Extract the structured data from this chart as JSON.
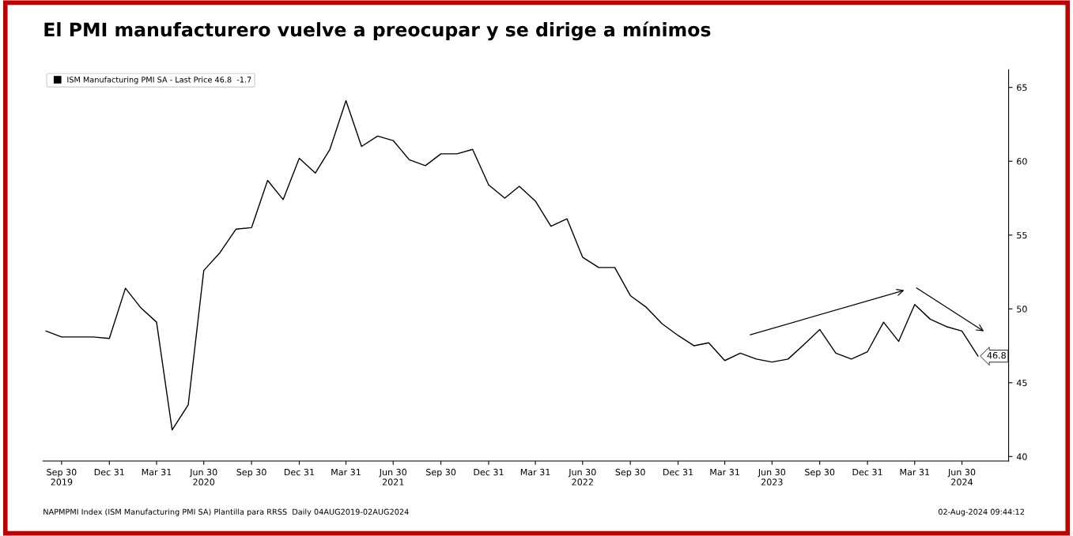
{
  "chart_data": {
    "type": "line",
    "title": "El PMI manufacturero vuelve a preocupar y se dirige a mínimos",
    "x": [
      "2019-08-31",
      "2019-09-30",
      "2019-10-31",
      "2019-11-30",
      "2019-12-31",
      "2020-01-31",
      "2020-02-29",
      "2020-03-31",
      "2020-04-30",
      "2020-05-31",
      "2020-06-30",
      "2020-07-31",
      "2020-08-31",
      "2020-09-30",
      "2020-10-31",
      "2020-11-30",
      "2020-12-31",
      "2021-01-31",
      "2021-02-28",
      "2021-03-31",
      "2021-04-30",
      "2021-05-31",
      "2021-06-30",
      "2021-07-31",
      "2021-08-31",
      "2021-09-30",
      "2021-10-31",
      "2021-11-30",
      "2021-12-31",
      "2022-01-31",
      "2022-02-28",
      "2022-03-31",
      "2022-04-30",
      "2022-05-31",
      "2022-06-30",
      "2022-07-31",
      "2022-08-31",
      "2022-09-30",
      "2022-10-31",
      "2022-11-30",
      "2022-12-31",
      "2023-01-31",
      "2023-02-28",
      "2023-03-31",
      "2023-04-30",
      "2023-05-31",
      "2023-06-30",
      "2023-07-31",
      "2023-08-31",
      "2023-09-30",
      "2023-10-31",
      "2023-11-30",
      "2023-12-31",
      "2024-01-31",
      "2024-02-29",
      "2024-03-31",
      "2024-04-30",
      "2024-05-31",
      "2024-06-30",
      "2024-07-31"
    ],
    "series": [
      {
        "name": "ISM Manufacturing PMI SA - Last Price 46.8  -1.7",
        "color": "#000000",
        "values": [
          48.5,
          48.1,
          48.1,
          48.1,
          48.0,
          51.4,
          50.1,
          49.1,
          41.8,
          43.5,
          52.6,
          53.8,
          55.4,
          55.5,
          58.7,
          57.4,
          60.2,
          59.2,
          60.8,
          64.1,
          61.0,
          61.7,
          61.4,
          60.1,
          59.7,
          60.5,
          60.5,
          60.8,
          58.4,
          57.5,
          58.3,
          57.3,
          55.6,
          56.1,
          53.5,
          52.8,
          52.8,
          50.9,
          50.1,
          49.0,
          48.2,
          47.5,
          47.7,
          46.5,
          47.0,
          46.6,
          46.4,
          46.6,
          47.6,
          48.6,
          47.0,
          46.6,
          47.1,
          49.1,
          47.8,
          50.3,
          49.3,
          48.8,
          48.5,
          46.8
        ]
      }
    ],
    "xlim": [
      "2019-08-25",
      "2024-09-28"
    ],
    "xticks": [
      {
        "value": "2019-09-30",
        "label": "Sep 30\n2019"
      },
      {
        "value": "2019-12-31",
        "label": "Dec 31"
      },
      {
        "value": "2020-03-31",
        "label": "Mar 31"
      },
      {
        "value": "2020-06-30",
        "label": "Jun 30\n2020"
      },
      {
        "value": "2020-09-30",
        "label": "Sep 30"
      },
      {
        "value": "2020-12-31",
        "label": "Dec 31"
      },
      {
        "value": "2021-03-31",
        "label": "Mar 31"
      },
      {
        "value": "2021-06-30",
        "label": "Jun 30\n2021"
      },
      {
        "value": "2021-09-30",
        "label": "Sep 30"
      },
      {
        "value": "2021-12-31",
        "label": "Dec 31"
      },
      {
        "value": "2022-03-31",
        "label": "Mar 31"
      },
      {
        "value": "2022-06-30",
        "label": "Jun 30\n2022"
      },
      {
        "value": "2022-09-30",
        "label": "Sep 30"
      },
      {
        "value": "2022-12-31",
        "label": "Dec 31"
      },
      {
        "value": "2023-03-31",
        "label": "Mar 31"
      },
      {
        "value": "2023-06-30",
        "label": "Jun 30\n2023"
      },
      {
        "value": "2023-09-30",
        "label": "Sep 30"
      },
      {
        "value": "2023-12-31",
        "label": "Dec 31"
      },
      {
        "value": "2024-03-31",
        "label": "Mar 31"
      },
      {
        "value": "2024-06-30",
        "label": "Jun 30\n2024"
      }
    ],
    "ylim": [
      39.7,
      66.2
    ],
    "yticks": [
      40,
      45,
      50,
      55,
      60,
      65
    ],
    "grid": false,
    "legend": "top left",
    "marker": "none",
    "line_style": "solid",
    "annotations": [
      {
        "text": "46.8",
        "x": "2024-07-31",
        "y": 46.8
      },
      "NAPMPMI Index (ISM Manufacturing PMI SA) Plantilla para RRSS  Daily 04AUG2019-02AUG2024",
      "02-Aug-2024 09:44:12"
    ]
  }
}
